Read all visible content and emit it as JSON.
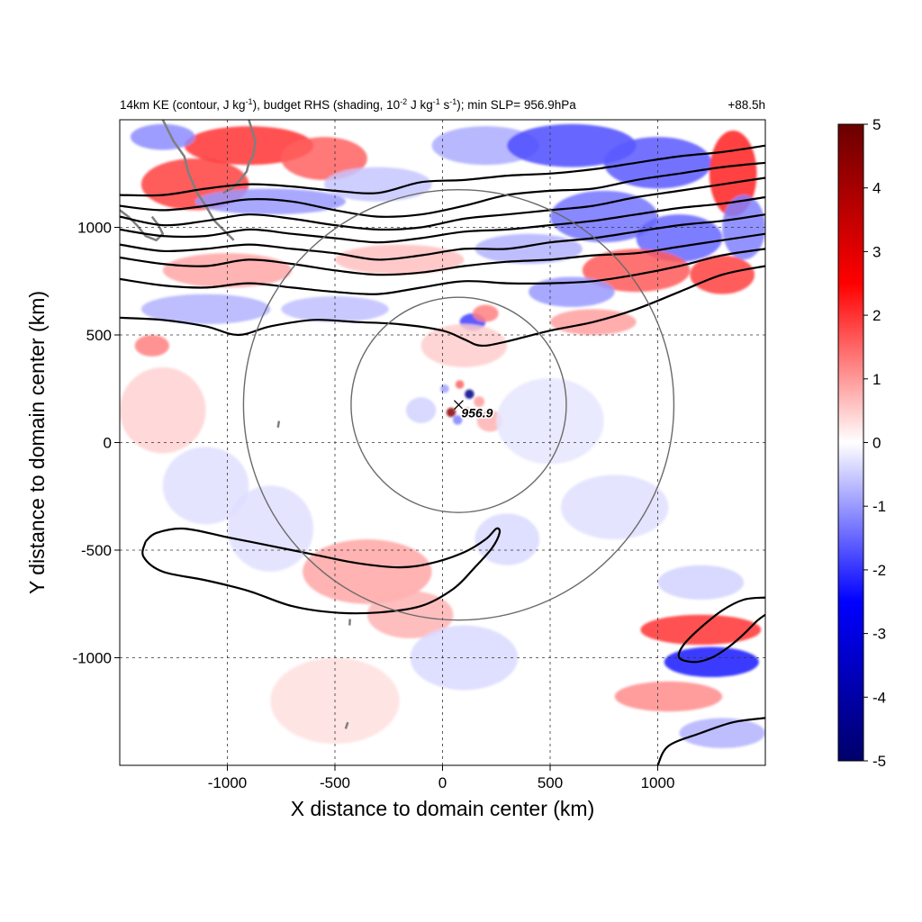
{
  "chart_data": {
    "type": "heatmap",
    "title_parts": [
      "14km KE (contour, J kg",
      "-1",
      "), budget RHS (shading, 10",
      "-2",
      " J kg",
      "-1",
      " s",
      "-1",
      "); min SLP= 956.9hPa"
    ],
    "time_label": "+88.5h",
    "xlabel": "X distance to domain center (km)",
    "ylabel": "Y distance to domain center (km)",
    "xlim": [
      -1500,
      1500
    ],
    "ylim": [
      -1500,
      1500
    ],
    "x_ticks": [
      -1000,
      -500,
      0,
      500,
      1000
    ],
    "y_ticks": [
      -1000,
      -500,
      0,
      500,
      1000
    ],
    "grid": true,
    "colorbar": {
      "min": -5,
      "max": 5,
      "ticks": [
        5,
        4,
        3,
        2,
        1,
        0,
        -1,
        -2,
        -3,
        -4,
        -5
      ],
      "colormap": [
        "#00006a",
        "#0000ff",
        "#ffffff",
        "#ff0000",
        "#6a0000"
      ]
    },
    "storm_center": {
      "x": 75,
      "y": 175,
      "label": "956.9"
    },
    "range_circles": [
      {
        "center_x": 75,
        "center_y": 175,
        "radius": 500
      },
      {
        "center_x": 75,
        "center_y": 175,
        "radius": 1000
      }
    ],
    "shading_features": [
      {
        "x": -1150,
        "y": 1200,
        "sx": 250,
        "sy": 120,
        "value": 3.0
      },
      {
        "x": -900,
        "y": 1380,
        "sx": 300,
        "sy": 90,
        "value": 3.2
      },
      {
        "x": -550,
        "y": 1320,
        "sx": 200,
        "sy": 100,
        "value": 2.5
      },
      {
        "x": -1300,
        "y": 1420,
        "sx": 150,
        "sy": 60,
        "value": -1.8
      },
      {
        "x": -800,
        "y": 1120,
        "sx": 350,
        "sy": 60,
        "value": -1.6
      },
      {
        "x": -300,
        "y": 1200,
        "sx": 250,
        "sy": 80,
        "value": -0.9
      },
      {
        "x": 200,
        "y": 1380,
        "sx": 250,
        "sy": 90,
        "value": -1.3
      },
      {
        "x": 600,
        "y": 1380,
        "sx": 300,
        "sy": 100,
        "value": -2.8
      },
      {
        "x": 1000,
        "y": 1300,
        "sx": 250,
        "sy": 120,
        "value": -2.6
      },
      {
        "x": 750,
        "y": 1050,
        "sx": 250,
        "sy": 120,
        "value": -2.2
      },
      {
        "x": 1100,
        "y": 950,
        "sx": 200,
        "sy": 110,
        "value": -2.4
      },
      {
        "x": 1350,
        "y": 1250,
        "sx": 110,
        "sy": 200,
        "value": 3.5
      },
      {
        "x": 1400,
        "y": 1000,
        "sx": 100,
        "sy": 150,
        "value": -2.0
      },
      {
        "x": 900,
        "y": 800,
        "sx": 250,
        "sy": 100,
        "value": 2.6
      },
      {
        "x": 1300,
        "y": 780,
        "sx": 150,
        "sy": 90,
        "value": 3.0
      },
      {
        "x": 400,
        "y": 900,
        "sx": 250,
        "sy": 70,
        "value": -1.2
      },
      {
        "x": -200,
        "y": 850,
        "sx": 300,
        "sy": 70,
        "value": 1.0
      },
      {
        "x": -1000,
        "y": 800,
        "sx": 300,
        "sy": 80,
        "value": 1.4
      },
      {
        "x": -1100,
        "y": 620,
        "sx": 300,
        "sy": 70,
        "value": -1.2
      },
      {
        "x": -500,
        "y": 620,
        "sx": 250,
        "sy": 60,
        "value": -1.0
      },
      {
        "x": 600,
        "y": 700,
        "sx": 200,
        "sy": 70,
        "value": -1.6
      },
      {
        "x": 700,
        "y": 560,
        "sx": 200,
        "sy": 60,
        "value": 1.5
      },
      {
        "x": 140,
        "y": 560,
        "sx": 60,
        "sy": 40,
        "value": -3.0
      },
      {
        "x": 200,
        "y": 600,
        "sx": 60,
        "sy": 40,
        "value": 2.0
      },
      {
        "x": 100,
        "y": 450,
        "sx": 200,
        "sy": 100,
        "value": 0.8
      },
      {
        "x": 125,
        "y": 225,
        "sx": 22,
        "sy": 22,
        "value": -4.8
      },
      {
        "x": 40,
        "y": 140,
        "sx": 22,
        "sy": 22,
        "value": 4.8
      },
      {
        "x": 115,
        "y": 140,
        "sx": 22,
        "sy": 22,
        "value": 2.5
      },
      {
        "x": 10,
        "y": 250,
        "sx": 20,
        "sy": 20,
        "value": -1.5
      },
      {
        "x": 80,
        "y": 270,
        "sx": 20,
        "sy": 20,
        "value": 2.5
      },
      {
        "x": 170,
        "y": 190,
        "sx": 25,
        "sy": 25,
        "value": 1.5
      },
      {
        "x": 70,
        "y": 105,
        "sx": 22,
        "sy": 22,
        "value": -2.0
      },
      {
        "x": 220,
        "y": 100,
        "sx": 60,
        "sy": 50,
        "value": 1.2
      },
      {
        "x": -100,
        "y": 150,
        "sx": 70,
        "sy": 60,
        "value": -0.7
      },
      {
        "x": -350,
        "y": -600,
        "sx": 300,
        "sy": 150,
        "value": 1.4
      },
      {
        "x": -150,
        "y": -800,
        "sx": 200,
        "sy": 110,
        "value": 1.2
      },
      {
        "x": -800,
        "y": -400,
        "sx": 200,
        "sy": 200,
        "value": -0.5
      },
      {
        "x": -1300,
        "y": 150,
        "sx": 200,
        "sy": 200,
        "value": 0.7
      },
      {
        "x": -1100,
        "y": -200,
        "sx": 200,
        "sy": 180,
        "value": -0.5
      },
      {
        "x": -1350,
        "y": 450,
        "sx": 80,
        "sy": 50,
        "value": 2.0
      },
      {
        "x": 100,
        "y": -1000,
        "sx": 250,
        "sy": 150,
        "value": -0.6
      },
      {
        "x": 1200,
        "y": -870,
        "sx": 280,
        "sy": 70,
        "value": 3.2
      },
      {
        "x": 1250,
        "y": -1020,
        "sx": 220,
        "sy": 70,
        "value": -3.6
      },
      {
        "x": 1050,
        "y": -1180,
        "sx": 250,
        "sy": 70,
        "value": 1.8
      },
      {
        "x": 1300,
        "y": -1350,
        "sx": 200,
        "sy": 70,
        "value": -1.2
      },
      {
        "x": 1200,
        "y": -650,
        "sx": 200,
        "sy": 80,
        "value": -0.7
      },
      {
        "x": 800,
        "y": -300,
        "sx": 250,
        "sy": 150,
        "value": -0.5
      },
      {
        "x": 500,
        "y": 100,
        "sx": 250,
        "sy": 200,
        "value": -0.4
      },
      {
        "x": -500,
        "y": -1200,
        "sx": 300,
        "sy": 200,
        "value": 0.5
      },
      {
        "x": 300,
        "y": -450,
        "sx": 150,
        "sy": 120,
        "value": -0.6
      }
    ],
    "ke_contours": [
      [
        [
          -1500,
          1150
        ],
        [
          -1300,
          1150
        ],
        [
          -1100,
          1180
        ],
        [
          -900,
          1200
        ],
        [
          -700,
          1190
        ],
        [
          -500,
          1170
        ],
        [
          -300,
          1160
        ],
        [
          -100,
          1210
        ],
        [
          100,
          1220
        ],
        [
          300,
          1240
        ],
        [
          500,
          1250
        ],
        [
          700,
          1270
        ],
        [
          900,
          1300
        ],
        [
          1100,
          1330
        ],
        [
          1300,
          1350
        ],
        [
          1500,
          1380
        ]
      ],
      [
        [
          -1500,
          1100
        ],
        [
          -1300,
          1080
        ],
        [
          -1100,
          1100
        ],
        [
          -900,
          1130
        ],
        [
          -700,
          1120
        ],
        [
          -500,
          1080
        ],
        [
          -300,
          1050
        ],
        [
          -100,
          1060
        ],
        [
          100,
          1100
        ],
        [
          300,
          1150
        ],
        [
          500,
          1170
        ],
        [
          700,
          1180
        ],
        [
          900,
          1220
        ],
        [
          1100,
          1250
        ],
        [
          1300,
          1280
        ],
        [
          1500,
          1300
        ]
      ],
      [
        [
          -1500,
          1050
        ],
        [
          -1300,
          1010
        ],
        [
          -1100,
          1030
        ],
        [
          -900,
          1060
        ],
        [
          -700,
          1040
        ],
        [
          -500,
          1010
        ],
        [
          -300,
          990
        ],
        [
          -100,
          1000
        ],
        [
          100,
          1040
        ],
        [
          300,
          1060
        ],
        [
          500,
          1080
        ],
        [
          700,
          1100
        ],
        [
          900,
          1140
        ],
        [
          1100,
          1170
        ],
        [
          1300,
          1200
        ],
        [
          1500,
          1230
        ]
      ],
      [
        [
          -1500,
          990
        ],
        [
          -1300,
          960
        ],
        [
          -1100,
          960
        ],
        [
          -900,
          990
        ],
        [
          -700,
          970
        ],
        [
          -500,
          950
        ],
        [
          -300,
          930
        ],
        [
          -100,
          950
        ],
        [
          100,
          980
        ],
        [
          300,
          990
        ],
        [
          500,
          1010
        ],
        [
          700,
          1030
        ],
        [
          900,
          1060
        ],
        [
          1100,
          1090
        ],
        [
          1300,
          1110
        ],
        [
          1500,
          1140
        ]
      ],
      [
        [
          -1500,
          920
        ],
        [
          -1300,
          890
        ],
        [
          -1100,
          900
        ],
        [
          -900,
          920
        ],
        [
          -700,
          900
        ],
        [
          -500,
          880
        ],
        [
          -300,
          850
        ],
        [
          -100,
          870
        ],
        [
          100,
          900
        ],
        [
          300,
          900
        ],
        [
          500,
          930
        ],
        [
          700,
          950
        ],
        [
          900,
          980
        ],
        [
          1100,
          1010
        ],
        [
          1300,
          1030
        ],
        [
          1500,
          1060
        ]
      ],
      [
        [
          -1500,
          860
        ],
        [
          -1300,
          830
        ],
        [
          -1100,
          820
        ],
        [
          -900,
          850
        ],
        [
          -700,
          830
        ],
        [
          -500,
          800
        ],
        [
          -300,
          780
        ],
        [
          -100,
          790
        ],
        [
          100,
          820
        ],
        [
          300,
          840
        ],
        [
          500,
          850
        ],
        [
          700,
          870
        ],
        [
          900,
          880
        ],
        [
          1100,
          910
        ],
        [
          1300,
          940
        ],
        [
          1500,
          970
        ]
      ],
      [
        [
          -1500,
          760
        ],
        [
          -1300,
          730
        ],
        [
          -1100,
          720
        ],
        [
          -900,
          740
        ],
        [
          -700,
          720
        ],
        [
          -500,
          700
        ],
        [
          -300,
          690
        ],
        [
          -100,
          720
        ],
        [
          100,
          750
        ],
        [
          300,
          740
        ],
        [
          500,
          740
        ],
        [
          700,
          750
        ],
        [
          900,
          780
        ],
        [
          1100,
          820
        ],
        [
          1300,
          870
        ],
        [
          1500,
          900
        ]
      ],
      [
        [
          -1500,
          580
        ],
        [
          -1300,
          570
        ],
        [
          -1100,
          540
        ],
        [
          -950,
          500
        ],
        [
          -800,
          540
        ],
        [
          -600,
          570
        ],
        [
          -400,
          560
        ],
        [
          -200,
          550
        ],
        [
          0,
          520
        ],
        [
          100,
          480
        ],
        [
          180,
          450
        ],
        [
          300,
          470
        ],
        [
          500,
          520
        ],
        [
          700,
          560
        ],
        [
          900,
          620
        ],
        [
          1100,
          700
        ],
        [
          1300,
          780
        ],
        [
          1500,
          820
        ]
      ],
      [
        [
          -1380,
          -460
        ],
        [
          -1330,
          -420
        ],
        [
          -1200,
          -400
        ],
        [
          -1000,
          -440
        ],
        [
          -800,
          -480
        ],
        [
          -600,
          -520
        ],
        [
          -400,
          -560
        ],
        [
          -200,
          -580
        ],
        [
          -50,
          -560
        ],
        [
          100,
          -510
        ],
        [
          200,
          -450
        ],
        [
          250,
          -400
        ],
        [
          265,
          -420
        ],
        [
          230,
          -490
        ],
        [
          150,
          -580
        ],
        [
          50,
          -680
        ],
        [
          -100,
          -760
        ],
        [
          -300,
          -790
        ],
        [
          -500,
          -790
        ],
        [
          -700,
          -760
        ],
        [
          -900,
          -690
        ],
        [
          -1100,
          -640
        ],
        [
          -1300,
          -600
        ],
        [
          -1390,
          -530
        ],
        [
          -1380,
          -460
        ]
      ],
      [
        [
          1500,
          -720
        ],
        [
          1400,
          -730
        ],
        [
          1300,
          -780
        ],
        [
          1200,
          -860
        ],
        [
          1120,
          -940
        ],
        [
          1100,
          -1000
        ],
        [
          1170,
          -1020
        ],
        [
          1250,
          -1000
        ],
        [
          1330,
          -950
        ],
        [
          1400,
          -890
        ],
        [
          1460,
          -830
        ],
        [
          1500,
          -800
        ]
      ],
      [
        [
          1500,
          -1280
        ],
        [
          1350,
          -1300
        ],
        [
          1200,
          -1350
        ],
        [
          1050,
          -1410
        ],
        [
          1000,
          -1500
        ]
      ]
    ],
    "coastlines": [
      [
        [
          -1300,
          1500
        ],
        [
          -1250,
          1400
        ],
        [
          -1200,
          1330
        ],
        [
          -1180,
          1250
        ],
        [
          -1140,
          1160
        ],
        [
          -1100,
          1100
        ],
        [
          -1060,
          1030
        ],
        [
          -1010,
          980
        ],
        [
          -970,
          940
        ]
      ],
      [
        [
          -900,
          1500
        ],
        [
          -870,
          1400
        ],
        [
          -880,
          1330
        ],
        [
          -900,
          1300
        ],
        [
          -910,
          1260
        ],
        [
          -940,
          1220
        ],
        [
          -980,
          1180
        ],
        [
          -1020,
          1160
        ]
      ],
      [
        [
          -1350,
          1050
        ],
        [
          -1320,
          1010
        ],
        [
          -1300,
          970
        ],
        [
          -1330,
          940
        ],
        [
          -1380,
          960
        ],
        [
          -1420,
          1010
        ],
        [
          -1460,
          1050
        ],
        [
          -1500,
          1080
        ]
      ],
      [
        [
          -760,
          100
        ],
        [
          -765,
          70
        ]
      ],
      [
        [
          -430,
          -820
        ],
        [
          -432,
          -850
        ]
      ],
      [
        [
          -440,
          -1300
        ],
        [
          -450,
          -1330
        ]
      ]
    ]
  }
}
